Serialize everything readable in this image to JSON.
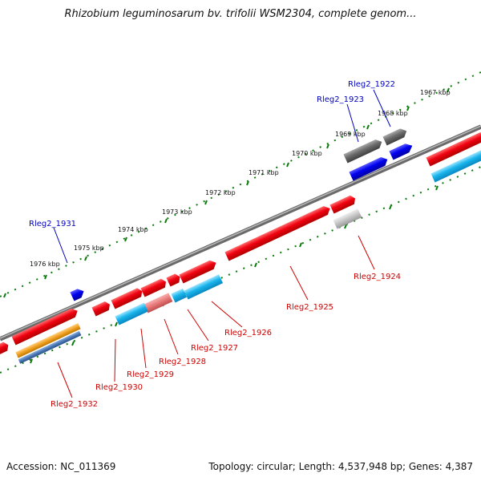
{
  "title": "Rhizobium leguminosarum bv. trifolii WSM2304, complete genom...",
  "footer": {
    "accession": "Accession: NC_011369",
    "summary": "Topology: circular; Length: 4,537,948 bp; Genes: 4,387"
  },
  "colors": {
    "backbone": "#8a8a8a",
    "forward_gene": "#e8000b",
    "reverse_gene": "#0000e0",
    "cds_reverse": "#1ab4e8",
    "pseudo_gene": "#6a6a6a",
    "light_pseudo": "#c8c8c8",
    "pink_gene": "#e87878",
    "orange_gene": "#f0a020",
    "steel_gene": "#4a78b4",
    "tick": "#0a7a0a",
    "label_forward": "#d00000",
    "label_reverse": "#0000c0"
  },
  "scale_labels": [
    "1967 kbp",
    "1968 kbp",
    "1969 kbp",
    "1970 kbp",
    "1971 kbp",
    "1972 kbp",
    "1973 kbp",
    "1974 kbp",
    "1975 kbp",
    "1976 kbp"
  ],
  "gene_labels": {
    "reverse": [
      "Rleg2_1922",
      "Rleg2_1923",
      "Rleg2_1931"
    ],
    "forward": [
      "Rleg2_1924",
      "Rleg2_1925",
      "Rleg2_1926",
      "Rleg2_1927",
      "Rleg2_1928",
      "Rleg2_1929",
      "Rleg2_1930",
      "Rleg2_1932"
    ]
  }
}
